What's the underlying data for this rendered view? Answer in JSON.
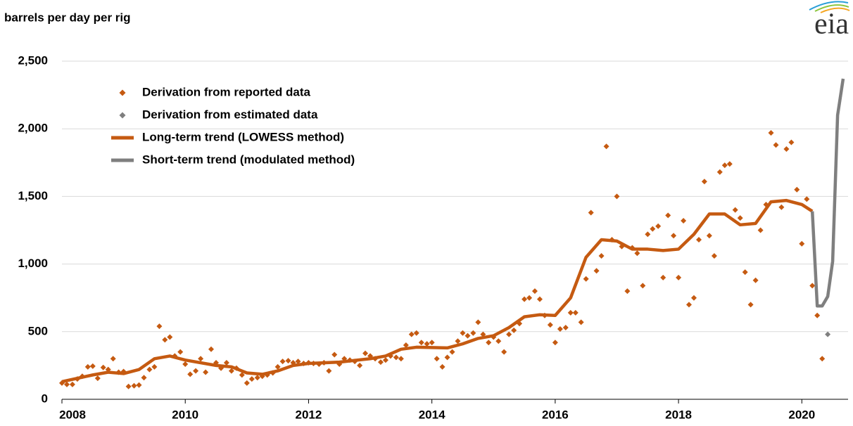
{
  "chart_data": {
    "type": "scatter",
    "y_label": "barrels per day per rig",
    "logo": "eia",
    "xlim": [
      2008,
      2020.75
    ],
    "xticks": [
      2008,
      2010,
      2012,
      2014,
      2016,
      2018,
      2020
    ],
    "ylim": [
      0,
      2500
    ],
    "yticks": [
      0,
      500,
      {
        "value": 1000,
        "label": "1,000"
      },
      {
        "value": 1500,
        "label": "1,500"
      },
      {
        "value": 2000,
        "label": "2,000"
      },
      {
        "value": 2500,
        "label": "2,500"
      }
    ],
    "grid": true,
    "series": [
      {
        "name": "Derivation from reported data",
        "color": "#c55a11",
        "kind": "points",
        "x": [
          2008,
          2008.08,
          2008.17,
          2008.25,
          2008.33,
          2008.42,
          2008.5,
          2008.58,
          2008.67,
          2008.75,
          2008.83,
          2008.92,
          2009,
          2009.08,
          2009.17,
          2009.25,
          2009.33,
          2009.42,
          2009.5,
          2009.58,
          2009.67,
          2009.75,
          2009.83,
          2009.92,
          2010,
          2010.08,
          2010.17,
          2010.25,
          2010.33,
          2010.42,
          2010.5,
          2010.58,
          2010.67,
          2010.75,
          2010.83,
          2010.92,
          2011,
          2011.08,
          2011.17,
          2011.25,
          2011.33,
          2011.42,
          2011.5,
          2011.58,
          2011.67,
          2011.75,
          2011.83,
          2011.92,
          2012,
          2012.08,
          2012.17,
          2012.25,
          2012.33,
          2012.42,
          2012.5,
          2012.58,
          2012.67,
          2012.75,
          2012.83,
          2012.92,
          2013,
          2013.08,
          2013.17,
          2013.25,
          2013.33,
          2013.42,
          2013.5,
          2013.58,
          2013.67,
          2013.75,
          2013.83,
          2013.92,
          2014,
          2014.08,
          2014.17,
          2014.25,
          2014.33,
          2014.42,
          2014.5,
          2014.58,
          2014.67,
          2014.75,
          2014.83,
          2014.92,
          2015,
          2015.08,
          2015.17,
          2015.25,
          2015.33,
          2015.42,
          2015.5,
          2015.58,
          2015.67,
          2015.75,
          2015.83,
          2015.92,
          2016,
          2016.08,
          2016.17,
          2016.25,
          2016.33,
          2016.42,
          2016.5,
          2016.58,
          2016.67,
          2016.75,
          2016.83,
          2016.92,
          2017,
          2017.08,
          2017.17,
          2017.25,
          2017.33,
          2017.42,
          2017.5,
          2017.58,
          2017.67,
          2017.75,
          2017.83,
          2017.92,
          2018,
          2018.08,
          2018.17,
          2018.25,
          2018.33,
          2018.42,
          2018.5,
          2018.58,
          2018.67,
          2018.75,
          2018.83,
          2018.92,
          2019,
          2019.08,
          2019.17,
          2019.25,
          2019.33,
          2019.42,
          2019.5,
          2019.58,
          2019.67,
          2019.75,
          2019.83,
          2019.92,
          2020,
          2020.08,
          2020.17,
          2020.25,
          2020.33
        ],
        "values": [
          120,
          110,
          110,
          150,
          170,
          240,
          245,
          155,
          235,
          220,
          300,
          200,
          205,
          95,
          100,
          105,
          160,
          220,
          240,
          540,
          440,
          460,
          320,
          350,
          260,
          185,
          210,
          300,
          200,
          370,
          270,
          230,
          270,
          210,
          230,
          180,
          120,
          150,
          160,
          170,
          180,
          195,
          240,
          280,
          285,
          270,
          280,
          265,
          270,
          265,
          260,
          270,
          210,
          330,
          260,
          300,
          290,
          280,
          250,
          340,
          320,
          300,
          275,
          290,
          320,
          310,
          300,
          400,
          480,
          490,
          420,
          410,
          420,
          300,
          240,
          310,
          350,
          430,
          490,
          470,
          490,
          570,
          480,
          420,
          460,
          430,
          350,
          480,
          510,
          560,
          740,
          750,
          800,
          740,
          620,
          550,
          420,
          520,
          530,
          640,
          640,
          570,
          890,
          1380,
          950,
          1060,
          1870,
          1180,
          1500,
          1130,
          800,
          1120,
          1080,
          840,
          1220,
          1260,
          1280,
          900,
          1360,
          1210,
          900,
          1320,
          700,
          750,
          1180,
          1610,
          1210,
          1060,
          1680,
          1730,
          1740,
          1400,
          1340,
          940,
          700,
          880,
          1250,
          1440,
          1970,
          1880,
          1420,
          1850,
          1900,
          1550,
          1150,
          1480,
          840,
          620,
          300
        ]
      },
      {
        "name": "Derivation from estimated data",
        "color": "#7f7f7f",
        "kind": "points",
        "x": [
          2020.42
        ],
        "values": [
          480
        ]
      },
      {
        "name": "Long-term trend (LOWESS method)",
        "color": "#c55a11",
        "kind": "line",
        "x": [
          2008,
          2008.5,
          2008.75,
          2009,
          2009.25,
          2009.5,
          2009.75,
          2010,
          2010.5,
          2010.75,
          2011,
          2011.25,
          2011.5,
          2011.75,
          2012,
          2012.5,
          2013,
          2013.25,
          2013.5,
          2013.75,
          2014.25,
          2014.5,
          2014.75,
          2015,
          2015.25,
          2015.5,
          2015.75,
          2016,
          2016.25,
          2016.5,
          2016.75,
          2017,
          2017.25,
          2017.5,
          2017.75,
          2018,
          2018.25,
          2018.5,
          2018.75,
          2019,
          2019.25,
          2019.5,
          2019.75,
          2020,
          2020.17
        ],
        "values": [
          130,
          180,
          200,
          190,
          220,
          300,
          320,
          290,
          250,
          240,
          195,
          185,
          210,
          250,
          265,
          275,
          300,
          320,
          370,
          385,
          380,
          410,
          450,
          470,
          530,
          610,
          625,
          620,
          750,
          1050,
          1180,
          1170,
          1110,
          1110,
          1100,
          1110,
          1220,
          1370,
          1370,
          1290,
          1300,
          1460,
          1470,
          1440,
          1390
        ]
      },
      {
        "name": "Short-term trend (modulated method)",
        "color": "#7f7f7f",
        "kind": "line",
        "x": [
          2020.17,
          2020.25,
          2020.33,
          2020.42,
          2020.5,
          2020.58,
          2020.67
        ],
        "values": [
          1390,
          690,
          690,
          760,
          1020,
          2100,
          2370
        ]
      }
    ]
  }
}
